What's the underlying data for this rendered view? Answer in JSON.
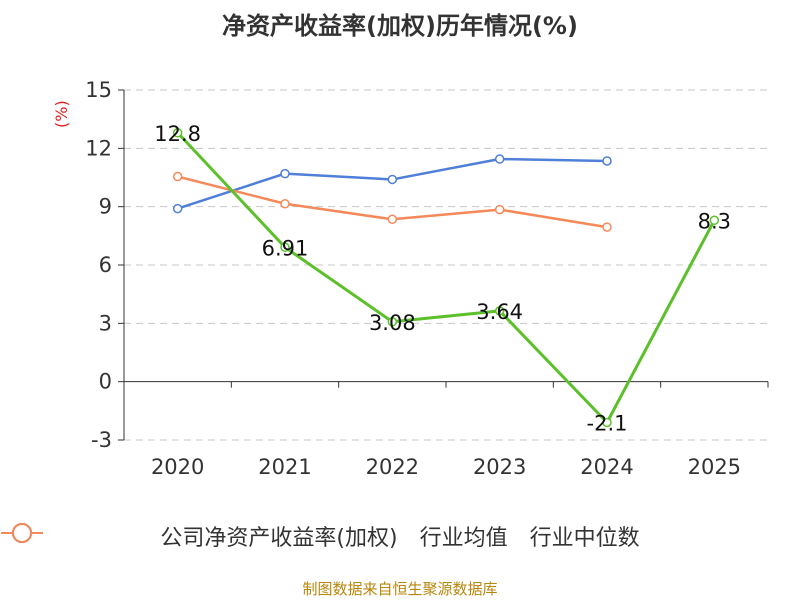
{
  "title": "净资产收益率(加权)历年情况(%)",
  "unit_label": "(%)",
  "footer": "制图数据来自恒生聚源数据库",
  "chart_data": {
    "type": "line",
    "categories": [
      "2020",
      "2021",
      "2022",
      "2023",
      "2024",
      "2025"
    ],
    "ylim": [
      -3,
      15
    ],
    "yticks": [
      -3,
      0,
      3,
      6,
      9,
      12,
      15
    ],
    "series": [
      {
        "name": "公司净资产收益率(加权)",
        "color": "#5cc02a",
        "values": [
          12.8,
          6.91,
          3.08,
          3.64,
          -2.1,
          8.3
        ],
        "labels": [
          "12.8",
          "6.91",
          "3.08",
          "3.64",
          "-2.1",
          "8.3"
        ]
      },
      {
        "name": "行业均值",
        "color": "#4f7fd8",
        "values": [
          8.9,
          10.7,
          10.4,
          11.45,
          11.35,
          null
        ]
      },
      {
        "name": "行业中位数",
        "color": "#f5895a",
        "values": [
          10.55,
          9.15,
          8.35,
          8.85,
          7.95,
          null
        ]
      }
    ]
  }
}
